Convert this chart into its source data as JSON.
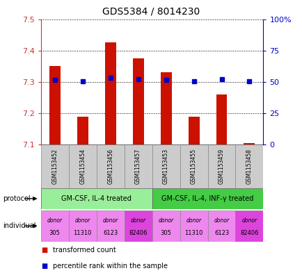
{
  "title": "GDS5384 / 8014230",
  "samples": [
    "GSM1153452",
    "GSM1153454",
    "GSM1153456",
    "GSM1153457",
    "GSM1153453",
    "GSM1153455",
    "GSM1153459",
    "GSM1153458"
  ],
  "bar_values": [
    7.35,
    7.19,
    7.425,
    7.375,
    7.33,
    7.19,
    7.26,
    7.105
  ],
  "bar_base": 7.1,
  "percentile_values": [
    7.306,
    7.302,
    7.312,
    7.308,
    7.306,
    7.302,
    7.308,
    7.302
  ],
  "ylim": [
    7.1,
    7.5
  ],
  "y_left_ticks": [
    7.1,
    7.2,
    7.3,
    7.4,
    7.5
  ],
  "y_right_ticks": [
    0,
    25,
    50,
    75,
    100
  ],
  "bar_color": "#cc1100",
  "percentile_color": "#0000cc",
  "protocol_groups": [
    {
      "label": "GM-CSF, IL-4 treated",
      "start": 0,
      "end": 4,
      "color": "#99ee99"
    },
    {
      "label": "GM-CSF, IL-4, INF-γ treated",
      "start": 4,
      "end": 8,
      "color": "#44cc44"
    }
  ],
  "individuals": [
    {
      "label": "donor\n305",
      "color": "#ee88ee"
    },
    {
      "label": "donor\n11310",
      "color": "#ee88ee"
    },
    {
      "label": "donor\n6123",
      "color": "#ee88ee"
    },
    {
      "label": "donor\n82406",
      "color": "#dd44dd"
    },
    {
      "label": "donor\n305",
      "color": "#ee88ee"
    },
    {
      "label": "donor\n11310",
      "color": "#ee88ee"
    },
    {
      "label": "donor\n6123",
      "color": "#ee88ee"
    },
    {
      "label": "donor\n82406",
      "color": "#dd44dd"
    }
  ],
  "legend_red": "transformed count",
  "legend_blue": "percentile rank within the sample",
  "protocol_label": "protocol",
  "individual_label": "individual",
  "sample_box_color": "#cccccc",
  "fig_width": 4.35,
  "fig_height": 3.93,
  "dpi": 100
}
